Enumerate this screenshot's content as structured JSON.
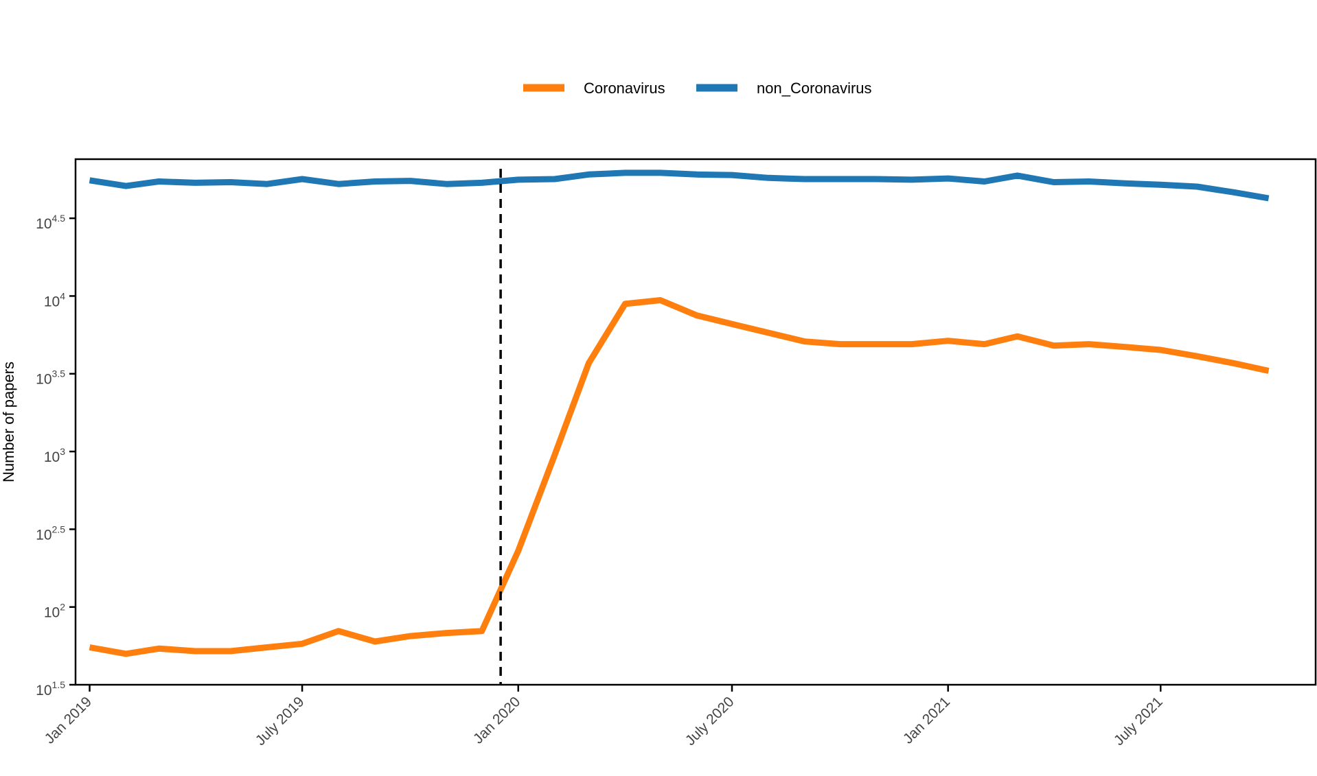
{
  "chart_data": {
    "type": "line",
    "ylabel": "Number of papers",
    "y_scale": "log10",
    "ylim_exponent": [
      1.5,
      4.88
    ],
    "y_ticks": [
      {
        "base": "10",
        "exp": "1.5",
        "value": 1.5
      },
      {
        "base": "10",
        "exp": "2",
        "value": 2
      },
      {
        "base": "10",
        "exp": "2.5",
        "value": 2.5
      },
      {
        "base": "10",
        "exp": "3",
        "value": 3
      },
      {
        "base": "10",
        "exp": "3.5",
        "value": 3.5
      },
      {
        "base": "10",
        "exp": "4",
        "value": 4
      },
      {
        "base": "10",
        "exp": "4.5",
        "value": 4.5
      }
    ],
    "x_ticks": [
      {
        "label": "Jan 2019",
        "date": "2019-01"
      },
      {
        "label": "July 2019",
        "date": "2019-07"
      },
      {
        "label": "Jan 2020",
        "date": "2020-01"
      },
      {
        "label": "July 2020",
        "date": "2020-07"
      },
      {
        "label": "Jan 2021",
        "date": "2021-01"
      },
      {
        "label": "July 2021",
        "date": "2021-07"
      }
    ],
    "x": [
      "2019-01",
      "2019-02",
      "2019-03",
      "2019-04",
      "2019-05",
      "2019-06",
      "2019-07",
      "2019-08",
      "2019-09",
      "2019-10",
      "2019-11",
      "2019-12",
      "2020-01",
      "2020-02",
      "2020-03",
      "2020-04",
      "2020-05",
      "2020-06",
      "2020-07",
      "2020-08",
      "2020-09",
      "2020-10",
      "2020-11",
      "2020-12",
      "2021-01",
      "2021-02",
      "2021-03",
      "2021-04",
      "2021-05",
      "2021-06",
      "2021-07",
      "2021-08",
      "2021-09",
      "2021-10"
    ],
    "x_date_range": [
      "2018-12-20",
      "2021-11-10"
    ],
    "vline_date": "2019-12-17",
    "legend_position": "top",
    "grid": false,
    "series": [
      {
        "name": "Coronavirus",
        "color": "#ff7f0e",
        "values": [
          55,
          50,
          54,
          52,
          52,
          55,
          58,
          70,
          60,
          65,
          68,
          70,
          230,
          950,
          3700,
          8900,
          9400,
          7500,
          6600,
          5800,
          5100,
          4900,
          4900,
          4900,
          5150,
          4900,
          5500,
          4800,
          4900,
          4700,
          4500,
          4100,
          3700,
          3300
        ]
      },
      {
        "name": "non_Coronavirus",
        "color": "#1f77b4",
        "values": [
          55500,
          51000,
          54500,
          53500,
          54000,
          52500,
          56500,
          52500,
          54500,
          55000,
          52500,
          53500,
          56000,
          56500,
          60500,
          62000,
          62000,
          60500,
          60000,
          57500,
          56500,
          56500,
          56500,
          56000,
          57000,
          54500,
          59500,
          54000,
          54500,
          53000,
          52000,
          50500,
          46500,
          42500
        ]
      }
    ]
  }
}
